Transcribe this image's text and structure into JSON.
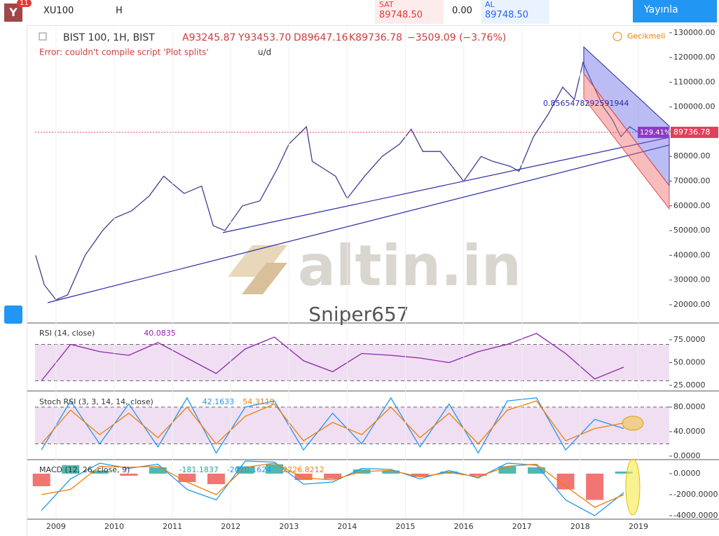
{
  "toolbar": {
    "badge": "11",
    "symbol": "XU100",
    "interval": "H",
    "sell_label": "SAT",
    "sell_price": "89748.50",
    "spread": "0.00",
    "buy_label": "AL",
    "buy_price": "89748.50",
    "publish": "Yayınla"
  },
  "header": {
    "instrument": "BIST 100, 1H, BIST",
    "open": "A93245.87",
    "high": "Y93453.70",
    "low": "D89647.16",
    "close": "K89736.78",
    "change": "−3509.09 (−3.76%)",
    "delayed": "Gecikmeli",
    "error": "Error: couldn't compile script 'Plot splits'",
    "ud": "u/d"
  },
  "annotations": {
    "fib": "0.8565478292591944",
    "pct": "129.41%",
    "watermark": "altin.in",
    "author": "Sniper657"
  },
  "chart_data": [
    {
      "type": "line",
      "color": "#3d3d8f",
      "xlim": [
        2008.64,
        2019.53
      ],
      "ylim": [
        12900,
        132500
      ],
      "yticks": [
        {
          "value": 20000,
          "label": "20000.00"
        },
        {
          "value": 30000,
          "label": "30000.00"
        },
        {
          "value": 40000,
          "label": "40000.00"
        },
        {
          "value": 50000,
          "label": "50000.00"
        },
        {
          "value": 60000,
          "label": "60000.00"
        },
        {
          "value": 70000,
          "label": "70000.00"
        },
        {
          "value": 80000,
          "label": "80000.00"
        },
        {
          "value": 90000,
          "label": "90000.00"
        },
        {
          "value": 100000,
          "label": "100000.00"
        },
        {
          "value": 110000,
          "label": "110000.00"
        },
        {
          "value": 120000,
          "label": "120000.00"
        },
        {
          "value": 130000,
          "label": "130000.00"
        }
      ],
      "price_line": 89736.78,
      "price_color": "#e0405a",
      "x": [
        2008.65,
        2008.8,
        2009.0,
        2009.2,
        2009.5,
        2009.8,
        2010.0,
        2010.3,
        2010.6,
        2010.85,
        2011.2,
        2011.5,
        2011.7,
        2011.9,
        2012.2,
        2012.5,
        2012.8,
        2013.0,
        2013.3,
        2013.4,
        2013.6,
        2013.8,
        2014.0,
        2014.3,
        2014.6,
        2014.9,
        2015.1,
        2015.3,
        2015.6,
        2015.8,
        2016.0,
        2016.3,
        2016.5,
        2016.8,
        2016.95,
        2017.2,
        2017.45,
        2017.7,
        2017.9,
        2018.05,
        2018.2,
        2018.4,
        2018.55,
        2018.7,
        2018.85,
        2019.0
      ],
      "values": [
        40000,
        28000,
        22000,
        24000,
        40000,
        50000,
        55000,
        58000,
        64000,
        72000,
        65000,
        68000,
        52000,
        50000,
        60000,
        62000,
        75000,
        85000,
        92000,
        78000,
        75000,
        72000,
        63000,
        72000,
        80000,
        85000,
        91000,
        82000,
        82000,
        76000,
        70000,
        80000,
        78000,
        76000,
        74000,
        88000,
        97000,
        108000,
        103000,
        118000,
        110000,
        100000,
        95000,
        88000,
        92000,
        89736.78
      ]
    },
    {
      "type": "line",
      "title": "RSI (14, close)",
      "last": "40.0835",
      "last_color": "#8e24aa",
      "xlim": [
        2008.64,
        2019.53
      ],
      "ylim": [
        19.6,
        92.7
      ],
      "yticks": [
        {
          "value": 25,
          "label": "25.0000"
        },
        {
          "value": 50,
          "label": "50.0000"
        },
        {
          "value": 75,
          "label": "75.0000"
        }
      ],
      "band": [
        30,
        70
      ],
      "band_color": "#9c27b0",
      "x": [
        2008.75,
        2009.25,
        2009.75,
        2010.25,
        2010.75,
        2011.25,
        2011.75,
        2012.25,
        2012.75,
        2013.25,
        2013.75,
        2014.25,
        2014.75,
        2015.25,
        2015.75,
        2016.25,
        2016.75,
        2017.25,
        2017.75,
        2018.25,
        2018.75
      ],
      "series": [
        {
          "color": "#8e24aa",
          "values": [
            30,
            70,
            62,
            58,
            72,
            55,
            38,
            65,
            78,
            52,
            40,
            60,
            58,
            55,
            50,
            62,
            70,
            82,
            60,
            32,
            45
          ]
        }
      ]
    },
    {
      "type": "line",
      "title": "Stoch RSI (3, 3, 14, 14, close)",
      "last": "42.1633",
      "last2": "54.3119",
      "last_color": "#2196f3",
      "last2_color": "#f57c00",
      "xlim": [
        2008.64,
        2019.53
      ],
      "ylim": [
        -4.6,
        104
      ],
      "yticks": [
        {
          "value": 0,
          "label": "0.0000"
        },
        {
          "value": 40,
          "label": "40.0000"
        },
        {
          "value": 80,
          "label": "80.0000"
        }
      ],
      "band": [
        20,
        80
      ],
      "band_color": "#9c27b0",
      "x": [
        2008.75,
        2009.25,
        2009.75,
        2010.25,
        2010.75,
        2011.25,
        2011.75,
        2012.25,
        2012.75,
        2013.25,
        2013.75,
        2014.25,
        2014.75,
        2015.25,
        2015.75,
        2016.25,
        2016.75,
        2017.25,
        2017.75,
        2018.25,
        2018.75
      ],
      "series": [
        {
          "color": "#2196f3",
          "values": [
            10,
            90,
            20,
            85,
            15,
            95,
            5,
            80,
            90,
            10,
            70,
            20,
            95,
            15,
            85,
            5,
            90,
            95,
            10,
            60,
            45
          ]
        },
        {
          "color": "#f57c00",
          "values": [
            20,
            75,
            35,
            70,
            30,
            80,
            20,
            65,
            85,
            25,
            55,
            35,
            80,
            30,
            70,
            20,
            75,
            90,
            25,
            45,
            54
          ]
        }
      ]
    },
    {
      "type": "combo",
      "title": "MACD (12, 26, close, 9)",
      "last": "-181.1837",
      "last2": "-2010.1624",
      "last3": "-2226.8212",
      "last_color": "#26a69a",
      "last2_color": "#2196f3",
      "last3_color": "#f57c00",
      "xlim": [
        2008.64,
        2019.53
      ],
      "ylim": [
        -4267,
        1267
      ],
      "yticks": [
        {
          "value": -4000,
          "label": "-4000.0000"
        },
        {
          "value": -2000,
          "label": "-2000.0000"
        },
        {
          "value": 0,
          "label": "0.0000"
        }
      ],
      "xticks": [
        2009,
        2010,
        2011,
        2012,
        2013,
        2014,
        2015,
        2016,
        2017,
        2018,
        2019
      ],
      "x": [
        2008.75,
        2009.25,
        2009.75,
        2010.25,
        2010.75,
        2011.25,
        2011.75,
        2012.25,
        2012.75,
        2013.25,
        2013.75,
        2014.25,
        2014.75,
        2015.25,
        2015.75,
        2016.25,
        2016.75,
        2017.25,
        2017.75,
        2018.25,
        2018.75
      ],
      "series": [
        {
          "style": "histogram",
          "color": "#26a69a",
          "color_down": "#ef5350",
          "values": [
            -1200,
            800,
            300,
            -200,
            600,
            -800,
            -1000,
            700,
            900,
            -600,
            -500,
            400,
            300,
            -300,
            200,
            -200,
            700,
            600,
            -1500,
            -2500,
            200
          ]
        },
        {
          "style": "line",
          "color": "#2196f3",
          "values": [
            -3500,
            -500,
            1000,
            500,
            900,
            -1500,
            -2500,
            1200,
            1100,
            -1000,
            -800,
            500,
            400,
            -500,
            300,
            -400,
            1000,
            800,
            -2500,
            -4000,
            -1800
          ]
        },
        {
          "style": "line",
          "color": "#f57c00",
          "values": [
            -2000,
            -1500,
            700,
            600,
            700,
            -800,
            -2000,
            600,
            1000,
            -400,
            -600,
            200,
            300,
            -300,
            100,
            -300,
            700,
            900,
            -1200,
            -3200,
            -2000
          ]
        }
      ]
    }
  ]
}
